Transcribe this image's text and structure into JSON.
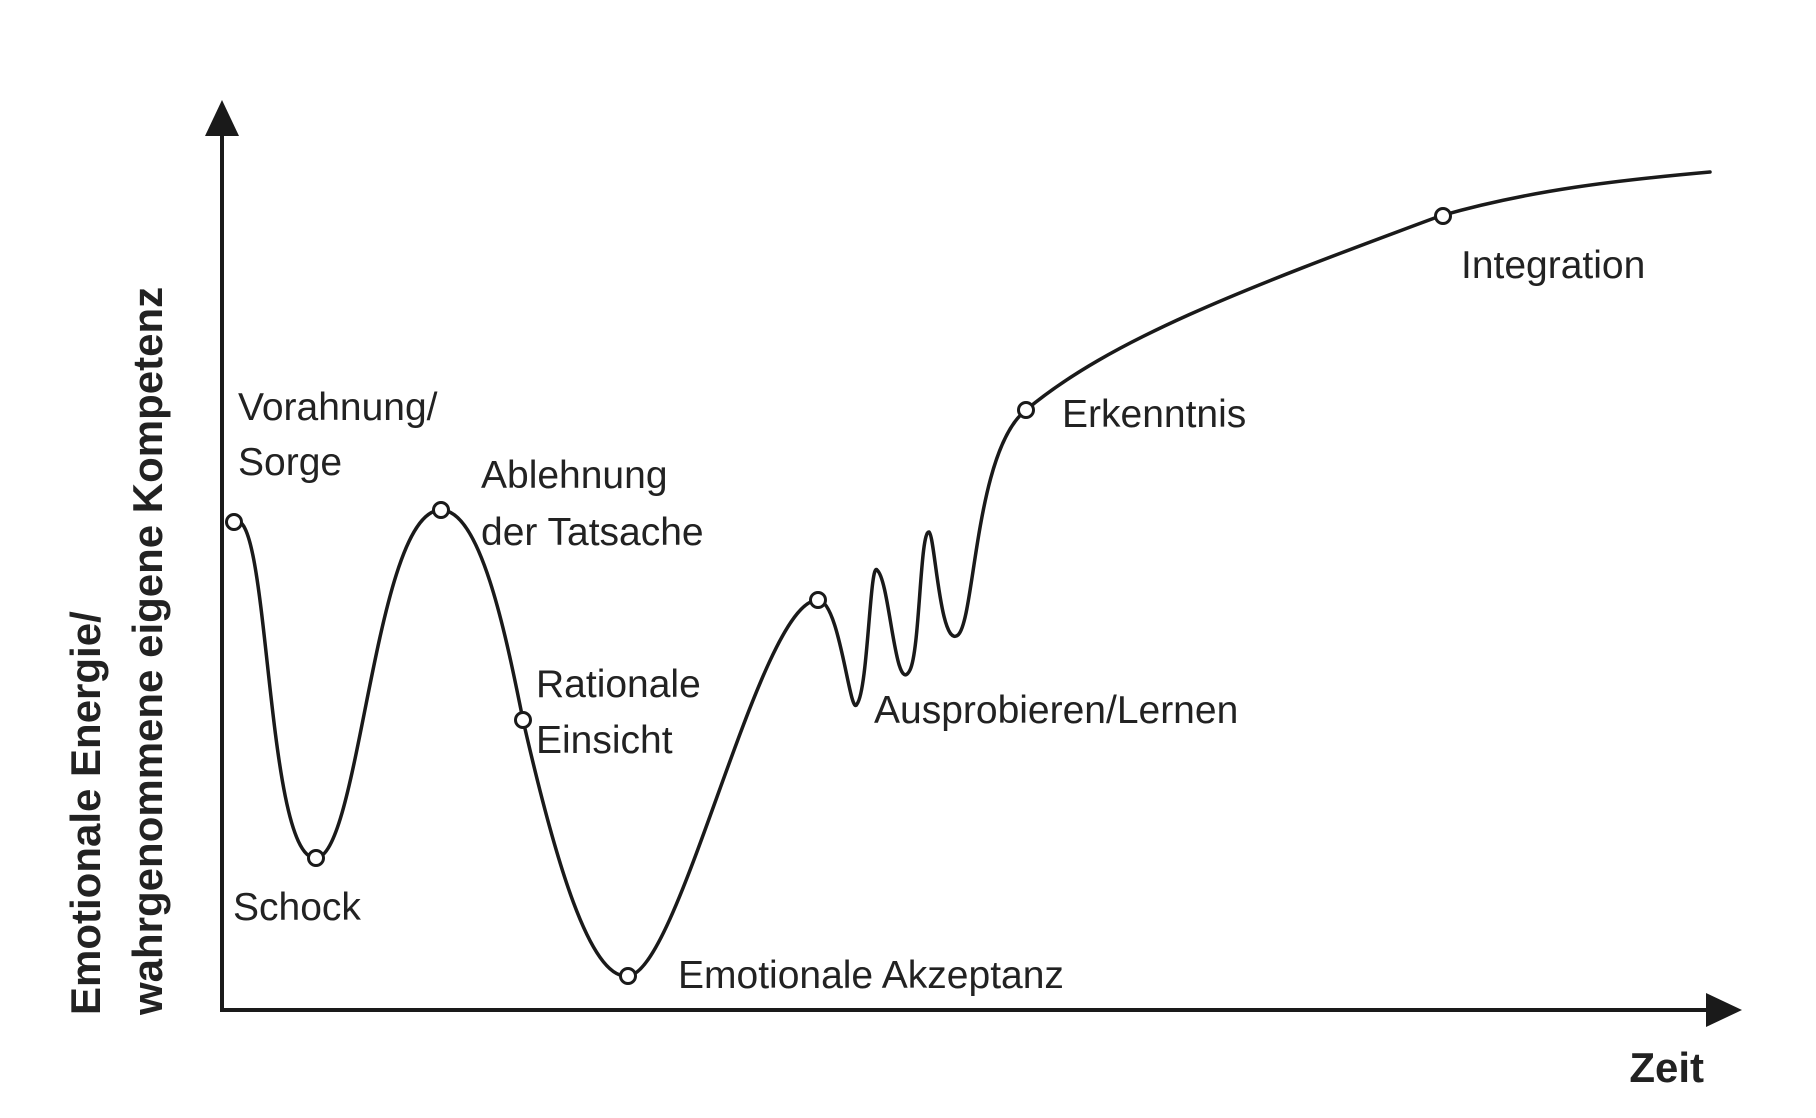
{
  "axes": {
    "y_label_line1": "Emotionale Energie/",
    "y_label_line2": "wahrgenommene eigene Kompetenz",
    "x_label": "Zeit"
  },
  "phases": {
    "vorahnung_line1": "Vorahnung/",
    "vorahnung_line2": "Sorge",
    "schock": "Schock",
    "ablehnung_line1": "Ablehnung",
    "ablehnung_line2": "der Tatsache",
    "rationale_line1": "Rationale",
    "rationale_line2": "Einsicht",
    "emotionale_akzeptanz": "Emotionale Akzeptanz",
    "ausprobieren": "Ausprobieren/Lernen",
    "erkenntnis": "Erkenntnis",
    "integration": "Integration"
  },
  "colors": {
    "line": "#1a1a1a",
    "text": "#222222",
    "background": "#ffffff"
  }
}
